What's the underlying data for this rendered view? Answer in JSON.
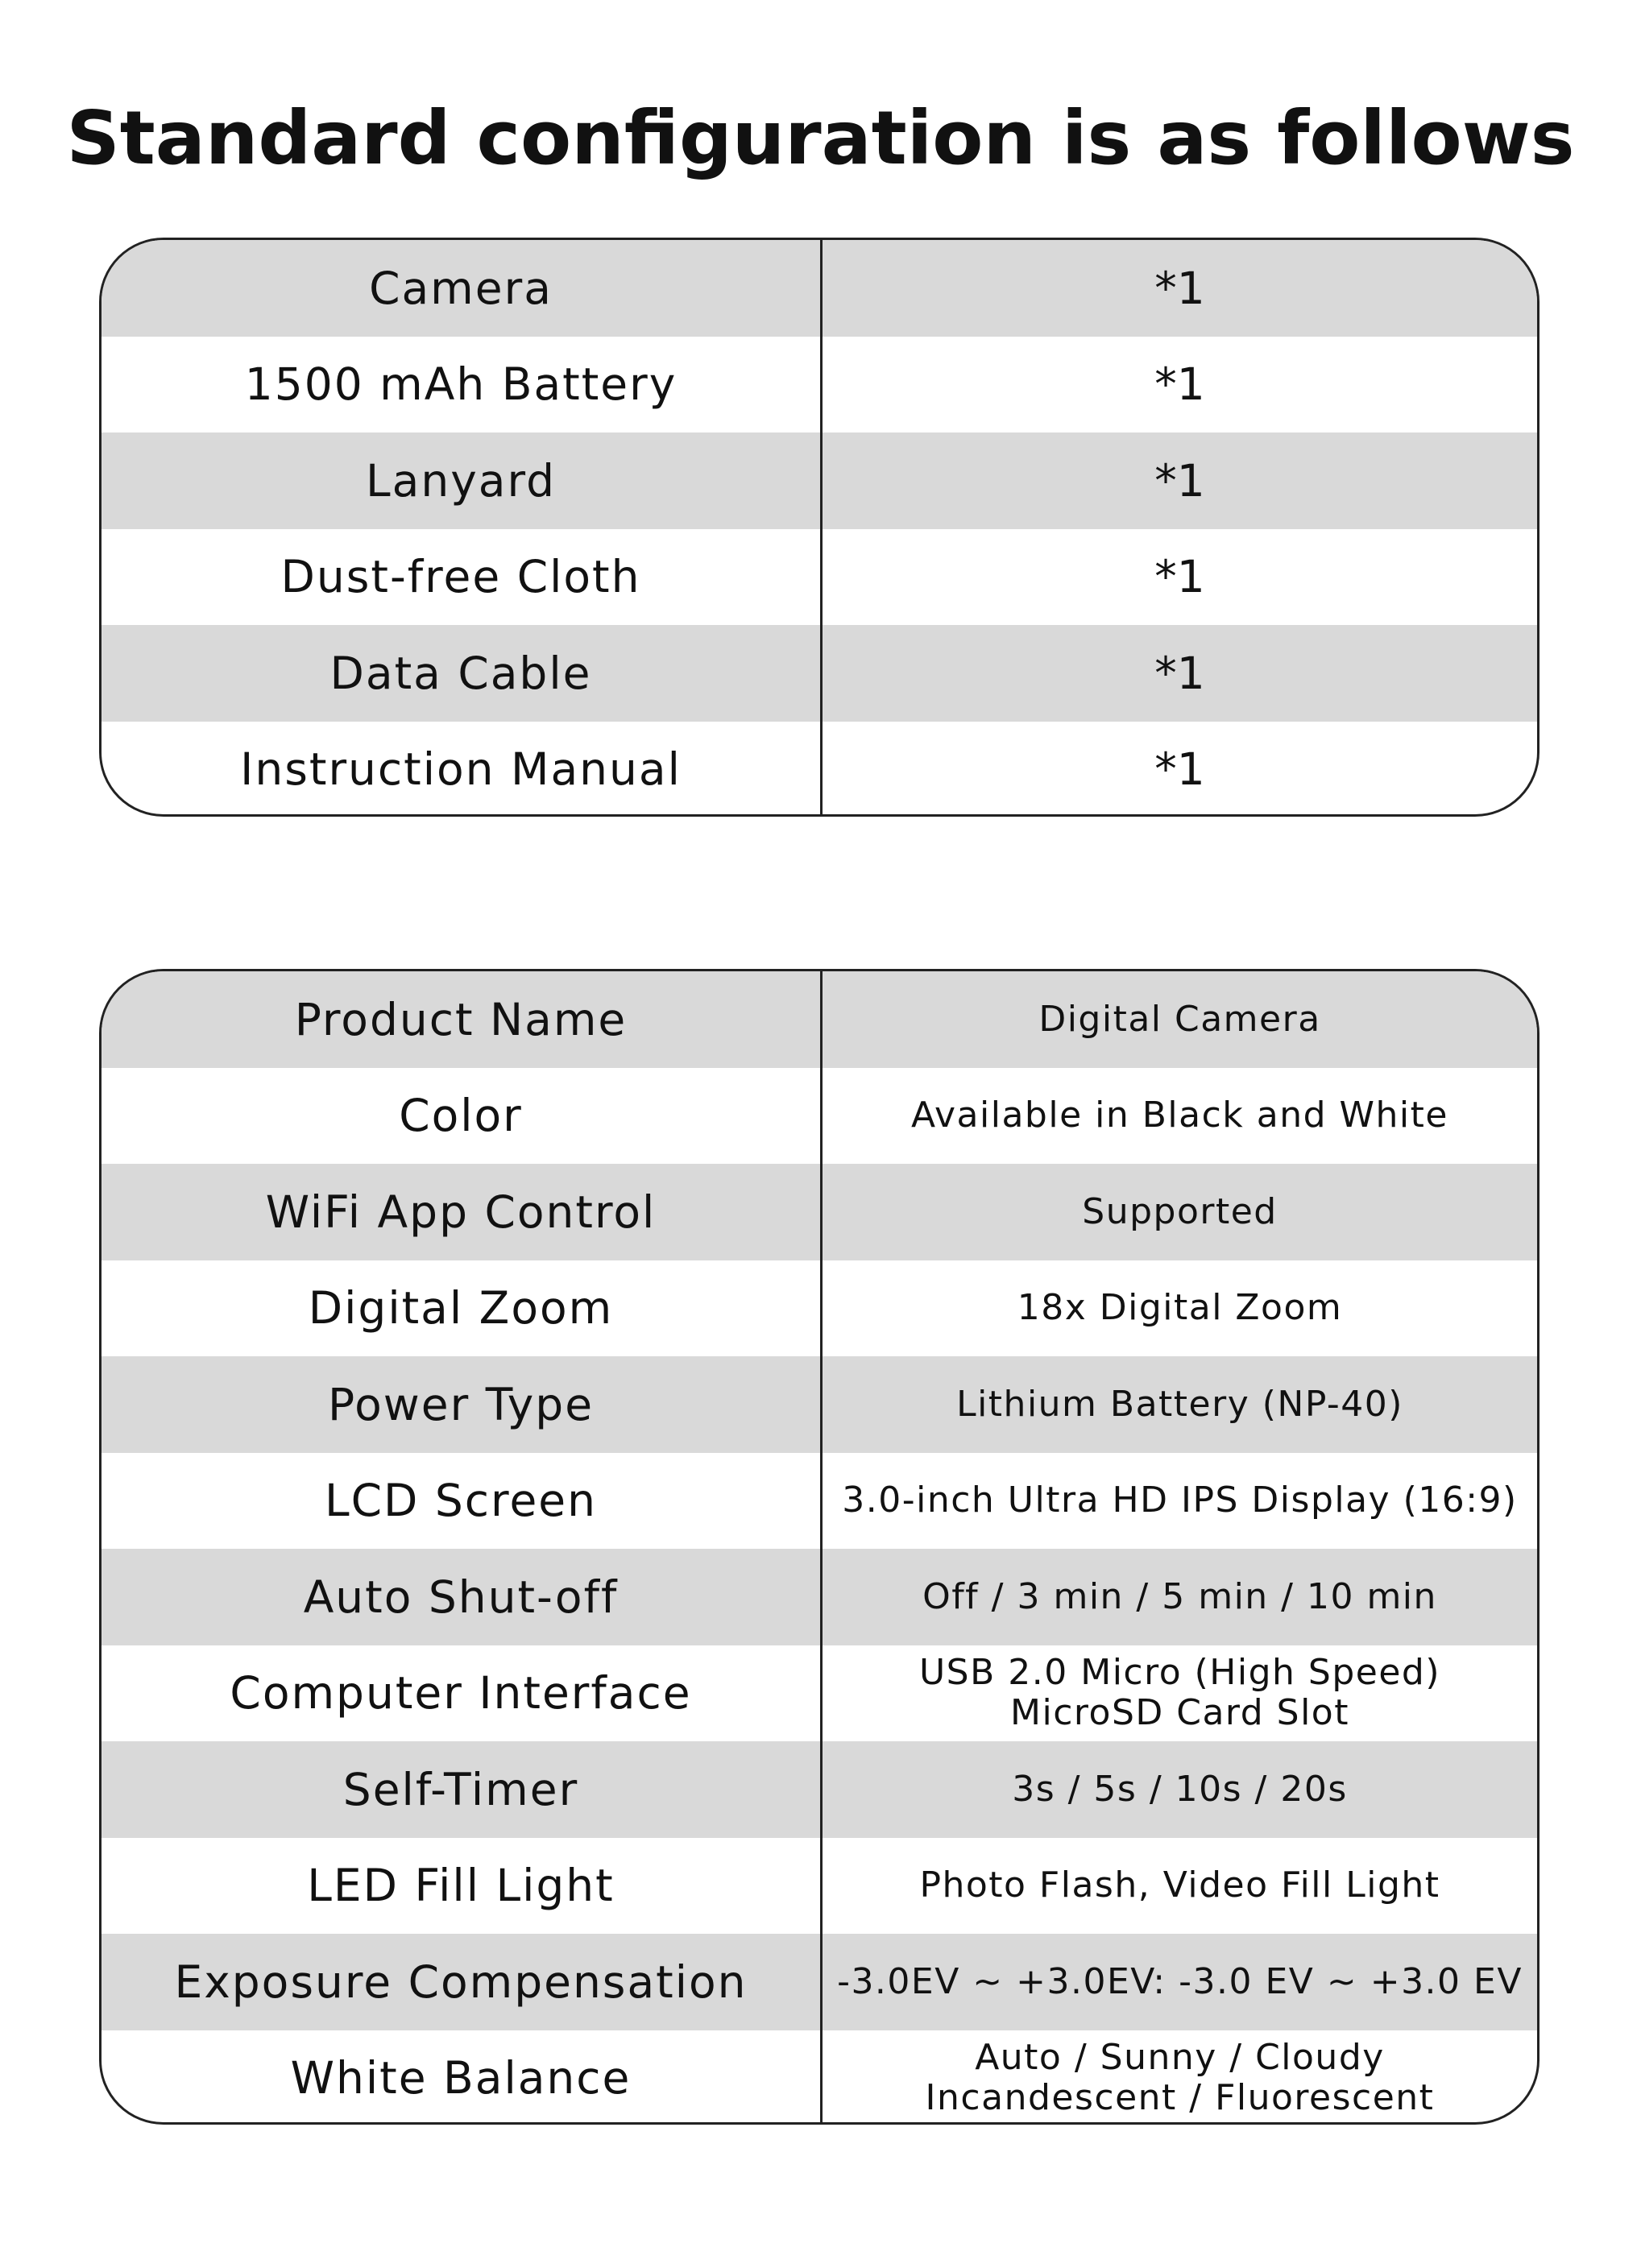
{
  "title": "Standard configuration is as follows",
  "package_list": [
    {
      "item": "Camera",
      "qty": "*1"
    },
    {
      "item": "1500 mAh Battery",
      "qty": "*1"
    },
    {
      "item": "Lanyard",
      "qty": "*1"
    },
    {
      "item": "Dust-free Cloth",
      "qty": "*1"
    },
    {
      "item": "Data Cable",
      "qty": "*1"
    },
    {
      "item": "Instruction Manual",
      "qty": "*1"
    }
  ],
  "specs": [
    {
      "name": "Product Name",
      "value": "Digital Camera"
    },
    {
      "name": "Color",
      "value": "Available in Black and White"
    },
    {
      "name": "WiFi App Control",
      "value": "Supported"
    },
    {
      "name": "Digital Zoom",
      "value": "18x Digital Zoom"
    },
    {
      "name": "Power Type",
      "value": "Lithium Battery (NP-40)"
    },
    {
      "name": "LCD Screen",
      "value": "3.0-inch Ultra HD IPS Display (16:9)"
    },
    {
      "name": "Auto Shut-off",
      "value": "Off / 3 min / 5 min / 10 min"
    },
    {
      "name": "Computer Interface",
      "value": "USB 2.0 Micro (High Speed)\nMicroSD Card Slot"
    },
    {
      "name": "Self-Timer",
      "value": "3s / 5s / 10s / 20s"
    },
    {
      "name": "LED Fill Light",
      "value": "Photo Flash, Video Fill Light"
    },
    {
      "name": "Exposure Compensation",
      "value": "-3.0EV ~ +3.0EV: -3.0 EV ~ +3.0 EV"
    },
    {
      "name": "White Balance",
      "value": "Auto / Sunny / Cloudy\nIncandescent / Fluorescent"
    }
  ]
}
